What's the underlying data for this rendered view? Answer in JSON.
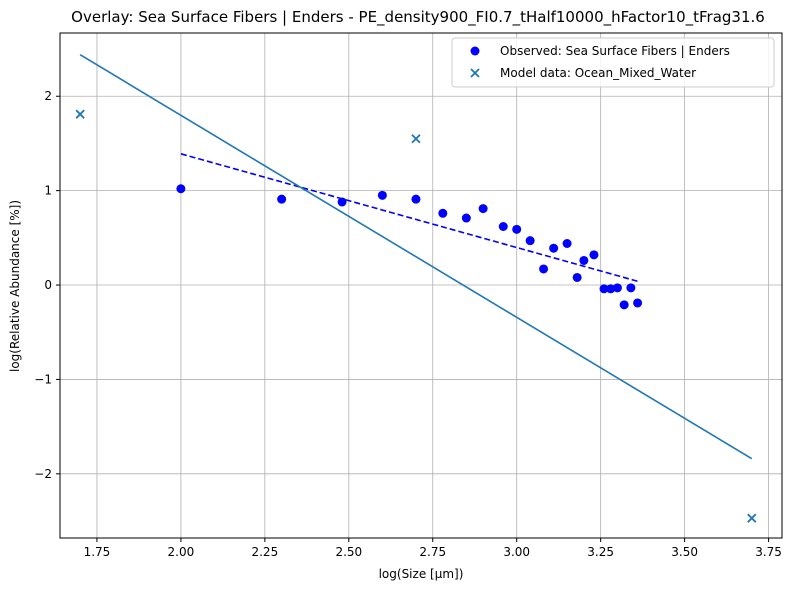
{
  "chart_data": {
    "type": "scatter",
    "title": "Overlay: Sea Surface Fibers | Enders - PE_density900_FI0.7_tHalf10000_hFactor10_tFrag31.6",
    "xlabel": "log(Size [μm])",
    "ylabel": "log(Relative Abundance [%])",
    "xlim": [
      1.64,
      3.79
    ],
    "ylim": [
      -2.68,
      2.67
    ],
    "xticks": [
      1.75,
      2.0,
      2.25,
      2.5,
      2.75,
      3.0,
      3.25,
      3.5,
      3.75
    ],
    "xtick_labels": [
      "1.75",
      "2.00",
      "2.25",
      "2.50",
      "2.75",
      "3.00",
      "3.25",
      "3.50",
      "3.75"
    ],
    "yticks": [
      -2,
      -1,
      0,
      1,
      2
    ],
    "ytick_labels": [
      "−2",
      "−1",
      "0",
      "1",
      "2"
    ],
    "grid": true,
    "legend_position": "top-right",
    "series": [
      {
        "name": "Observed: Sea Surface Fibers | Enders",
        "kind": "scatter",
        "marker": "circle",
        "color": "#0000ff",
        "x": [
          2.0,
          2.3,
          2.48,
          2.6,
          2.7,
          2.78,
          2.85,
          2.9,
          2.96,
          3.0,
          3.04,
          3.08,
          3.11,
          3.15,
          3.18,
          3.2,
          3.23,
          3.26,
          3.28,
          3.3,
          3.32,
          3.34,
          3.36
        ],
        "y": [
          1.02,
          0.91,
          0.88,
          0.95,
          0.91,
          0.76,
          0.71,
          0.81,
          0.62,
          0.59,
          0.47,
          0.17,
          0.39,
          0.44,
          0.08,
          0.26,
          0.32,
          -0.04,
          -0.04,
          -0.03,
          -0.21,
          -0.03,
          -0.19
        ]
      },
      {
        "name": "Model data: Ocean_Mixed_Water",
        "kind": "scatter",
        "marker": "x",
        "color": "#1f77b4",
        "x": [
          1.7,
          2.7,
          3.7
        ],
        "y": [
          1.81,
          1.55,
          -2.47
        ]
      },
      {
        "name": "",
        "kind": "line",
        "style": "dashed",
        "color": "#0000ff",
        "x": [
          2.0,
          3.36
        ],
        "y": [
          1.39,
          0.04
        ]
      },
      {
        "name": "",
        "kind": "line",
        "style": "solid",
        "color": "#1f77b4",
        "x": [
          1.7,
          3.7
        ],
        "y": [
          2.44,
          -1.84
        ]
      }
    ]
  }
}
